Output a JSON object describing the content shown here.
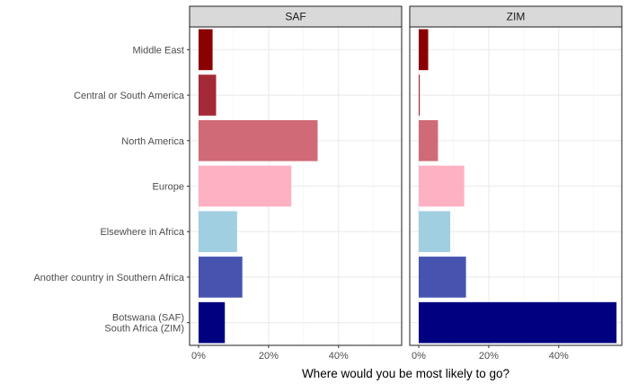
{
  "chart_data": {
    "type": "bar",
    "orientation": "horizontal",
    "xlabel": "Where would you be most likely to go?",
    "ylabel": "",
    "xlim": [
      0,
      0.575
    ],
    "x_ticks": [
      0,
      0.2,
      0.4
    ],
    "x_tick_labels": [
      "0%",
      "20%",
      "40%"
    ],
    "grid": true,
    "category_lines": [
      [
        "Middle East"
      ],
      [
        "Central or South America"
      ],
      [
        "North America"
      ],
      [
        "Europe"
      ],
      [
        "Elsewhere in Africa"
      ],
      [
        "Another country in Southern Africa"
      ],
      [
        "Botswana (SAF)",
        "South Africa (ZIM)"
      ]
    ],
    "colors": [
      "#8b0000",
      "#a52a37",
      "#d06a76",
      "#ffb1c4",
      "#a0cfe2",
      "#4654b0",
      "#000080"
    ],
    "panels": [
      {
        "name": "SAF",
        "values": [
          0.04,
          0.05,
          0.34,
          0.265,
          0.11,
          0.125,
          0.075
        ]
      },
      {
        "name": "ZIM",
        "values": [
          0.027,
          0.003,
          0.055,
          0.13,
          0.09,
          0.135,
          0.565
        ]
      }
    ]
  }
}
